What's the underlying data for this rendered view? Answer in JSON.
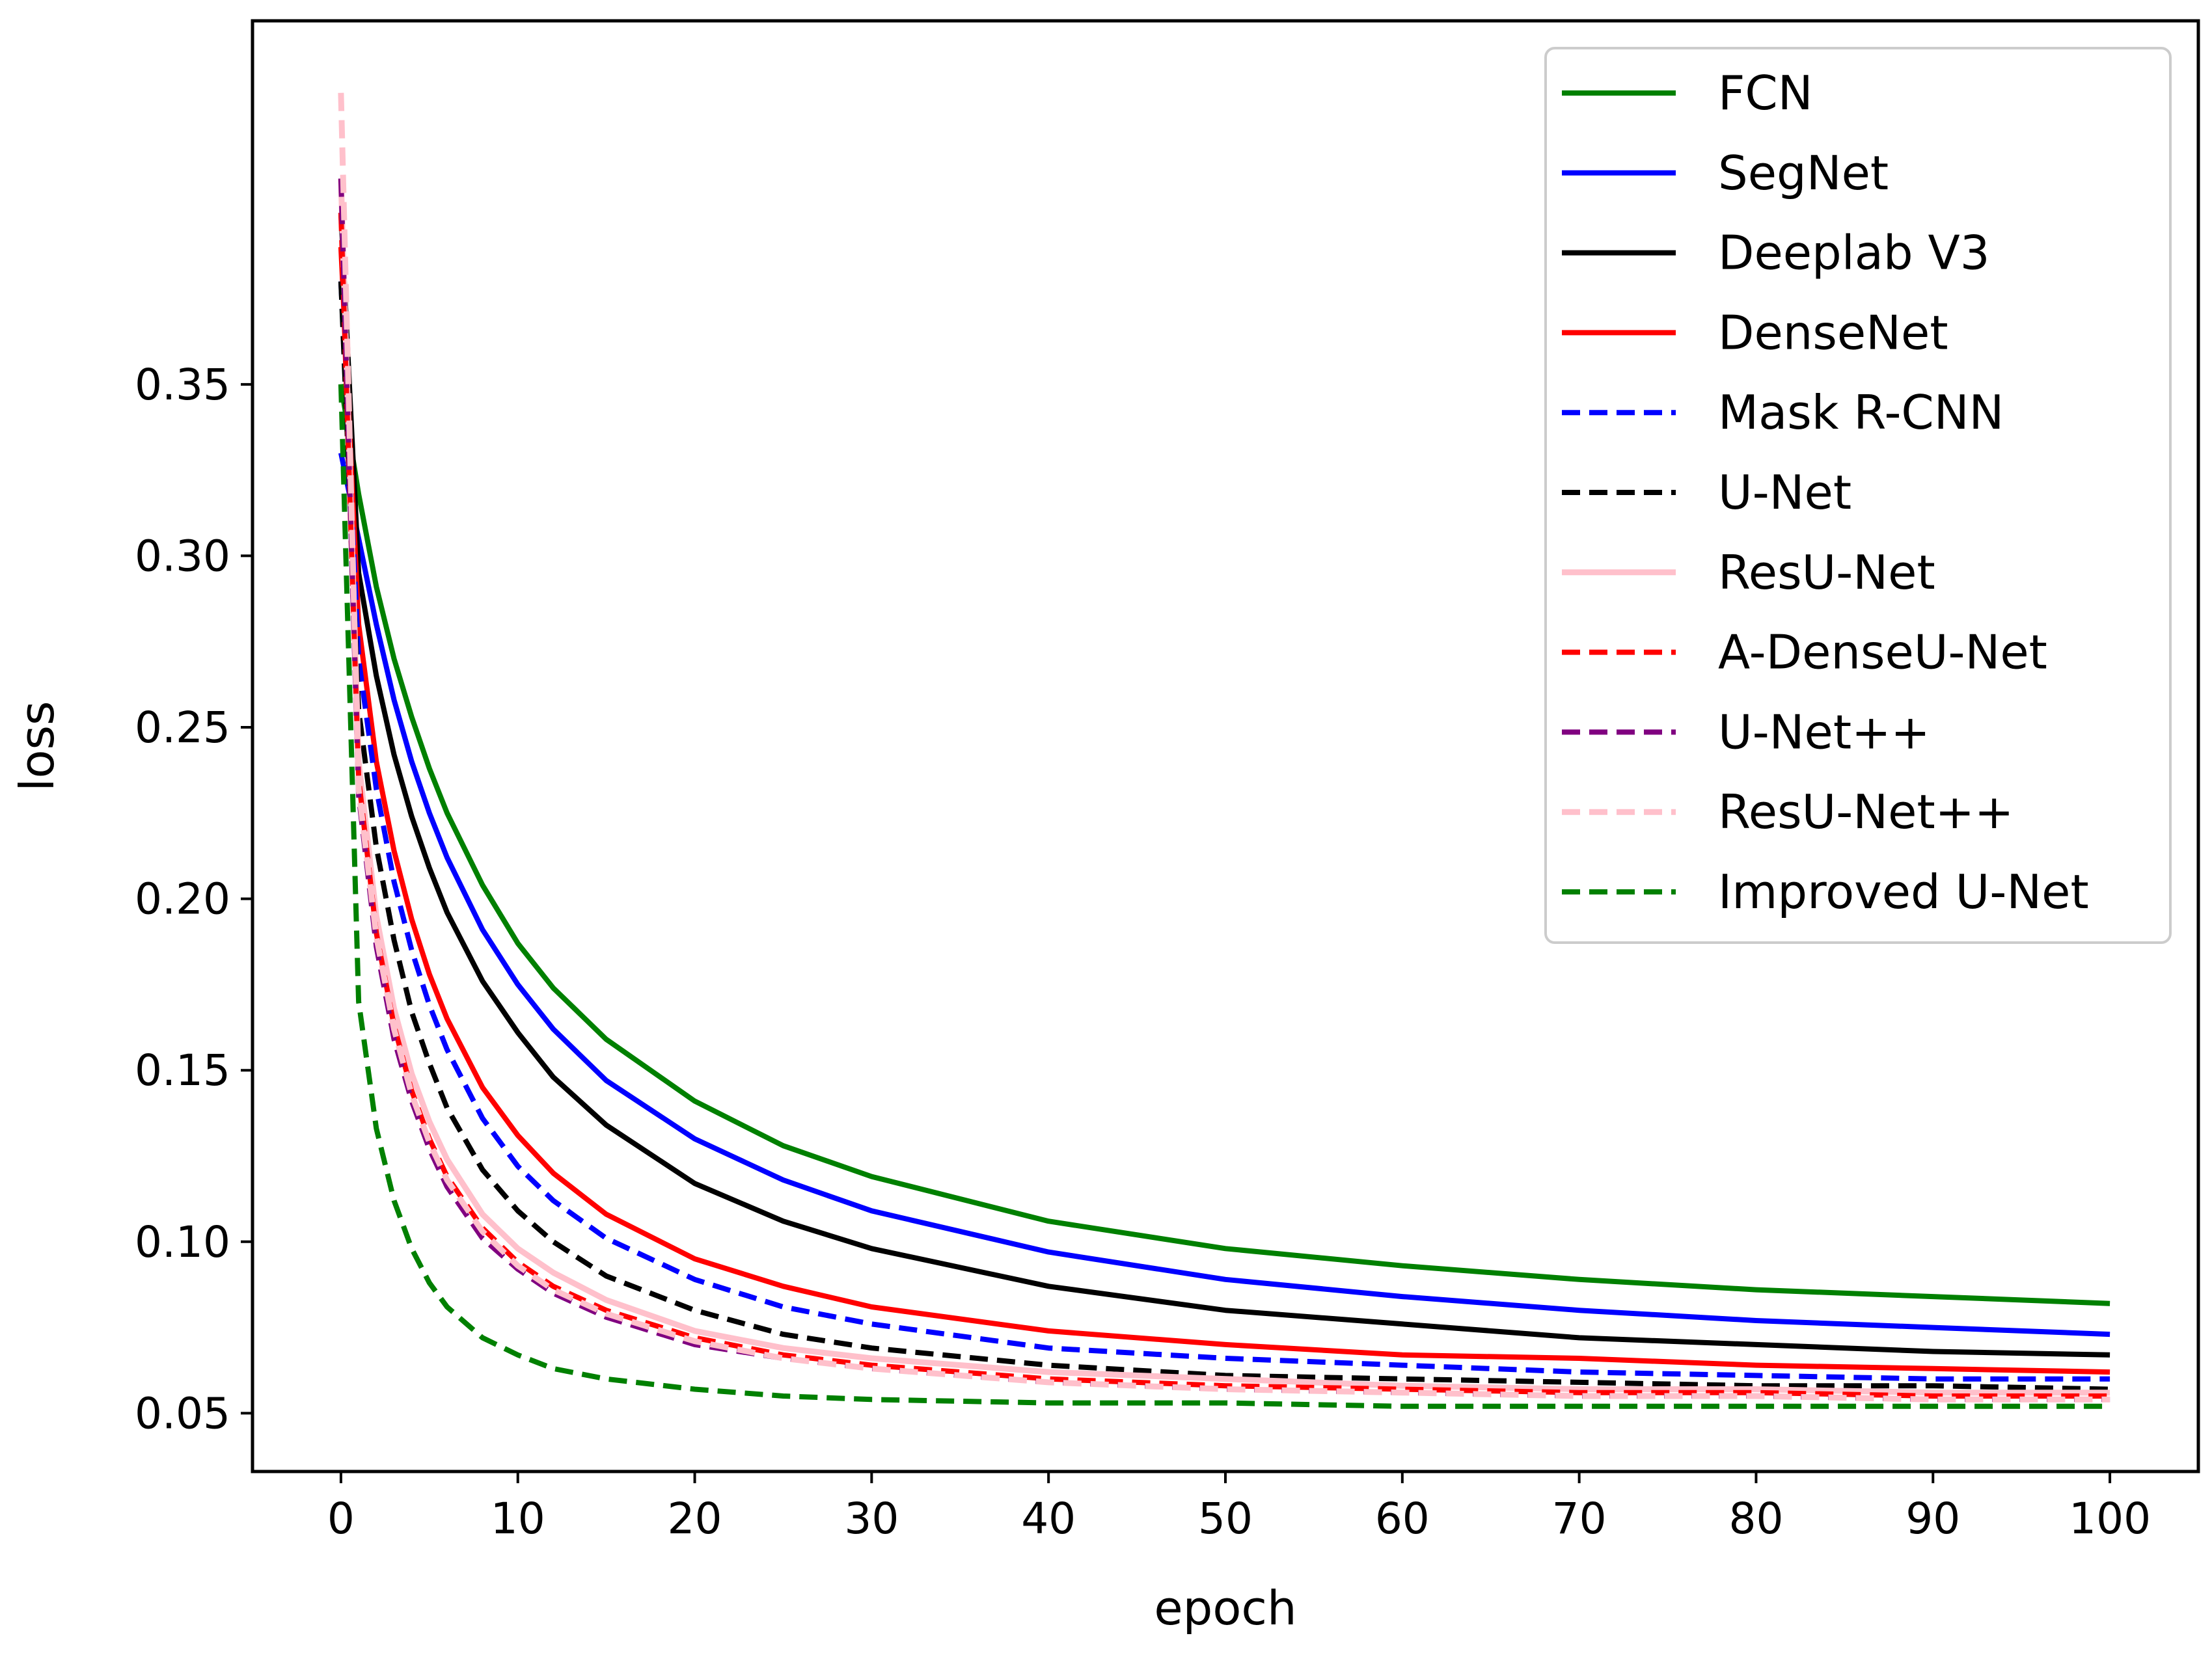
{
  "chart_data": {
    "type": "line",
    "title": "",
    "xlabel": "epoch",
    "ylabel": "loss",
    "xlim": [
      -5,
      105
    ],
    "ylim": [
      0.033,
      0.456
    ],
    "xticks": [
      0,
      10,
      20,
      30,
      40,
      50,
      60,
      70,
      80,
      90,
      100
    ],
    "xtick_labels": [
      "0",
      "10",
      "20",
      "30",
      "40",
      "50",
      "60",
      "70",
      "80",
      "90",
      "100"
    ],
    "yticks": [
      0.05,
      0.1,
      0.15,
      0.2,
      0.25,
      0.3,
      0.35
    ],
    "ytick_labels": [
      "0.05",
      "0.10",
      "0.15",
      "0.20",
      "0.25",
      "0.30",
      "0.35"
    ],
    "grid": false,
    "legend_position": "top-right",
    "x": [
      0,
      1,
      2,
      3,
      4,
      5,
      6,
      8,
      10,
      12,
      15,
      20,
      25,
      30,
      40,
      50,
      60,
      70,
      80,
      90,
      100
    ],
    "series": [
      {
        "name": "FCN",
        "color": "#008000",
        "style": "solid",
        "values": [
          0.35,
          0.318,
          0.291,
          0.27,
          0.253,
          0.238,
          0.225,
          0.204,
          0.187,
          0.174,
          0.159,
          0.141,
          0.128,
          0.119,
          0.106,
          0.098,
          0.093,
          0.089,
          0.086,
          0.084,
          0.082
        ]
      },
      {
        "name": "SegNet",
        "color": "#0000ff",
        "style": "solid",
        "values": [
          0.33,
          0.305,
          0.28,
          0.258,
          0.24,
          0.225,
          0.212,
          0.191,
          0.175,
          0.162,
          0.147,
          0.13,
          0.118,
          0.109,
          0.097,
          0.089,
          0.084,
          0.08,
          0.077,
          0.075,
          0.073
        ]
      },
      {
        "name": "Deeplab V3",
        "color": "#000000",
        "style": "solid",
        "values": [
          0.4,
          0.295,
          0.265,
          0.242,
          0.224,
          0.209,
          0.196,
          0.176,
          0.161,
          0.148,
          0.134,
          0.117,
          0.106,
          0.098,
          0.087,
          0.08,
          0.076,
          0.072,
          0.07,
          0.068,
          0.067
        ]
      },
      {
        "name": "DenseNet",
        "color": "#ff0000",
        "style": "solid",
        "values": [
          0.39,
          0.28,
          0.24,
          0.214,
          0.194,
          0.178,
          0.165,
          0.145,
          0.131,
          0.12,
          0.108,
          0.095,
          0.087,
          0.081,
          0.074,
          0.07,
          0.067,
          0.066,
          0.064,
          0.063,
          0.062
        ]
      },
      {
        "name": "Mask R-CNN",
        "color": "#0000ff",
        "style": "dashed",
        "values": [
          0.38,
          0.27,
          0.232,
          0.205,
          0.185,
          0.169,
          0.156,
          0.136,
          0.122,
          0.112,
          0.101,
          0.089,
          0.081,
          0.076,
          0.069,
          0.066,
          0.064,
          0.062,
          0.061,
          0.06,
          0.06
        ]
      },
      {
        "name": "U-Net",
        "color": "#000000",
        "style": "dashed",
        "values": [
          0.38,
          0.255,
          0.215,
          0.188,
          0.167,
          0.152,
          0.139,
          0.121,
          0.109,
          0.1,
          0.09,
          0.08,
          0.073,
          0.069,
          0.064,
          0.061,
          0.06,
          0.059,
          0.058,
          0.058,
          0.057
        ]
      },
      {
        "name": "ResU-Net",
        "color": "#ffc0cb",
        "style": "solid",
        "values": [
          0.41,
          0.24,
          0.195,
          0.168,
          0.149,
          0.135,
          0.124,
          0.108,
          0.098,
          0.091,
          0.083,
          0.074,
          0.069,
          0.066,
          0.062,
          0.06,
          0.058,
          0.057,
          0.057,
          0.056,
          0.056
        ]
      },
      {
        "name": "A-DenseU-Net",
        "color": "#ff0000",
        "style": "dashed",
        "values": [
          0.4,
          0.235,
          0.19,
          0.163,
          0.144,
          0.13,
          0.119,
          0.104,
          0.094,
          0.087,
          0.08,
          0.072,
          0.067,
          0.064,
          0.06,
          0.058,
          0.057,
          0.056,
          0.056,
          0.055,
          0.055
        ]
      },
      {
        "name": "U-Net++",
        "color": "#800080",
        "style": "dashed",
        "values": [
          0.41,
          0.23,
          0.186,
          0.159,
          0.141,
          0.127,
          0.116,
          0.101,
          0.092,
          0.085,
          0.078,
          0.07,
          0.066,
          0.063,
          0.059,
          0.057,
          0.056,
          0.055,
          0.055,
          0.054,
          0.054
        ]
      },
      {
        "name": "ResU-Net++",
        "color": "#ffc0cb",
        "style": "dashed",
        "values": [
          0.435,
          0.232,
          0.189,
          0.162,
          0.143,
          0.129,
          0.118,
          0.103,
          0.093,
          0.086,
          0.079,
          0.071,
          0.066,
          0.063,
          0.059,
          0.057,
          0.056,
          0.055,
          0.055,
          0.054,
          0.054
        ]
      },
      {
        "name": "Improved U-Net",
        "color": "#008000",
        "style": "dashed",
        "values": [
          0.35,
          0.17,
          0.133,
          0.112,
          0.098,
          0.088,
          0.081,
          0.072,
          0.067,
          0.063,
          0.06,
          0.057,
          0.055,
          0.054,
          0.053,
          0.053,
          0.052,
          0.052,
          0.052,
          0.052,
          0.052
        ]
      }
    ]
  }
}
